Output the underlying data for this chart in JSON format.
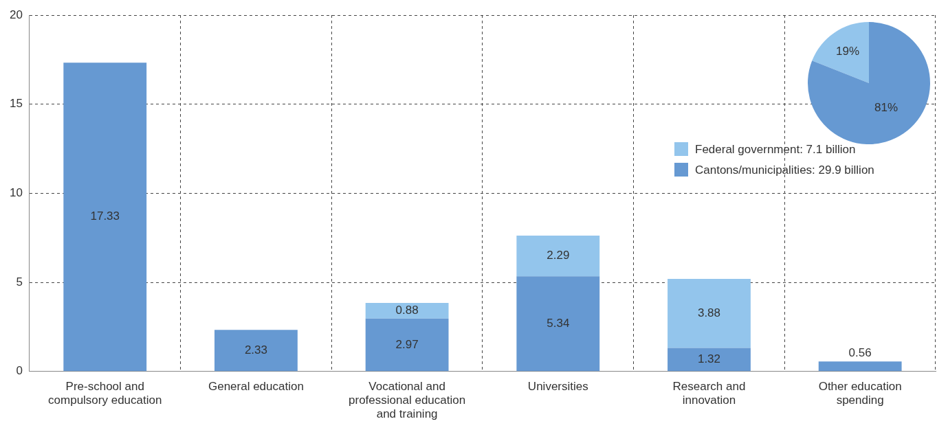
{
  "chart_data": [
    {
      "type": "bar",
      "stacked": true,
      "categories": [
        "Pre-school and compulsory education",
        "General education",
        "Vocational and professional education and training",
        "Universities",
        "Research and innovation",
        "Other education spending"
      ],
      "series": [
        {
          "name": "Cantons/municipalities: 29.9 billion",
          "color": "#6699d2",
          "values": [
            17.33,
            2.33,
            2.97,
            5.34,
            1.32,
            0.56
          ]
        },
        {
          "name": "Federal government: 7.1 billion",
          "color": "#93c5ec",
          "values": [
            null,
            null,
            0.88,
            2.29,
            3.88,
            null
          ]
        }
      ],
      "ylim": [
        0,
        20
      ],
      "yticks": [
        0,
        5,
        10,
        15,
        20
      ],
      "grid": true,
      "legend": "top right",
      "data_labels": true
    },
    {
      "type": "pie",
      "categories": [
        null,
        null
      ],
      "values": [
        19,
        81
      ],
      "colors": [
        "#93c5ec",
        "#6699d2"
      ],
      "value_labels": [
        "19%",
        "81%"
      ]
    }
  ]
}
